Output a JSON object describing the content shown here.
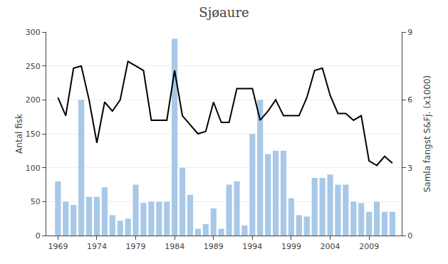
{
  "chart_data": {
    "type": "bar",
    "title": "Sjøaure",
    "ylabel": "Antal fisk",
    "y2label": "Samla fangst S&Fj. (x1000)",
    "x": [
      1969,
      1970,
      1971,
      1972,
      1973,
      1974,
      1975,
      1976,
      1977,
      1978,
      1979,
      1980,
      1981,
      1982,
      1983,
      1984,
      1985,
      1986,
      1987,
      1988,
      1989,
      1990,
      1991,
      1992,
      1993,
      1994,
      1995,
      1996,
      1997,
      1998,
      1999,
      2000,
      2001,
      2002,
      2003,
      2004,
      2005,
      2006,
      2007,
      2008,
      2009,
      2010,
      2011,
      2012
    ],
    "series": [
      {
        "type": "bar",
        "color": "#a8c8e8",
        "values": [
          80,
          50,
          45,
          200,
          57,
          57,
          71,
          30,
          22,
          25,
          75,
          48,
          50,
          50,
          50,
          290,
          100,
          60,
          10,
          17,
          40,
          10,
          75,
          80,
          15,
          150,
          200,
          120,
          125,
          125,
          55,
          30,
          28,
          85,
          85,
          90,
          75,
          75,
          50,
          48,
          35,
          50,
          35,
          35
        ]
      },
      {
        "type": "line",
        "color": "#000000",
        "axis": "y2",
        "values": [
          6.1,
          5.3,
          7.4,
          7.5,
          6.0,
          4.1,
          5.9,
          5.5,
          6.0,
          7.7,
          7.5,
          7.3,
          5.1,
          5.1,
          5.1,
          7.3,
          5.3,
          4.9,
          4.5,
          4.6,
          5.9,
          5.0,
          5.0,
          6.5,
          6.5,
          6.5,
          5.1,
          5.5,
          6.0,
          5.3,
          5.3,
          5.3,
          6.1,
          7.3,
          7.4,
          6.2,
          5.4,
          5.4,
          5.1,
          5.3,
          3.3,
          3.1,
          3.5,
          3.2
        ]
      }
    ],
    "xlim": [
      1967.5,
      2013.2
    ],
    "xticks": [
      1969,
      1974,
      1979,
      1984,
      1989,
      1994,
      1999,
      2004,
      2009
    ],
    "ylim": [
      0,
      300
    ],
    "yticks": [
      0,
      50,
      100,
      150,
      200,
      250,
      300
    ],
    "y2lim": [
      0,
      9
    ],
    "y2ticks": [
      0,
      3,
      6,
      9
    ],
    "grid": true
  }
}
